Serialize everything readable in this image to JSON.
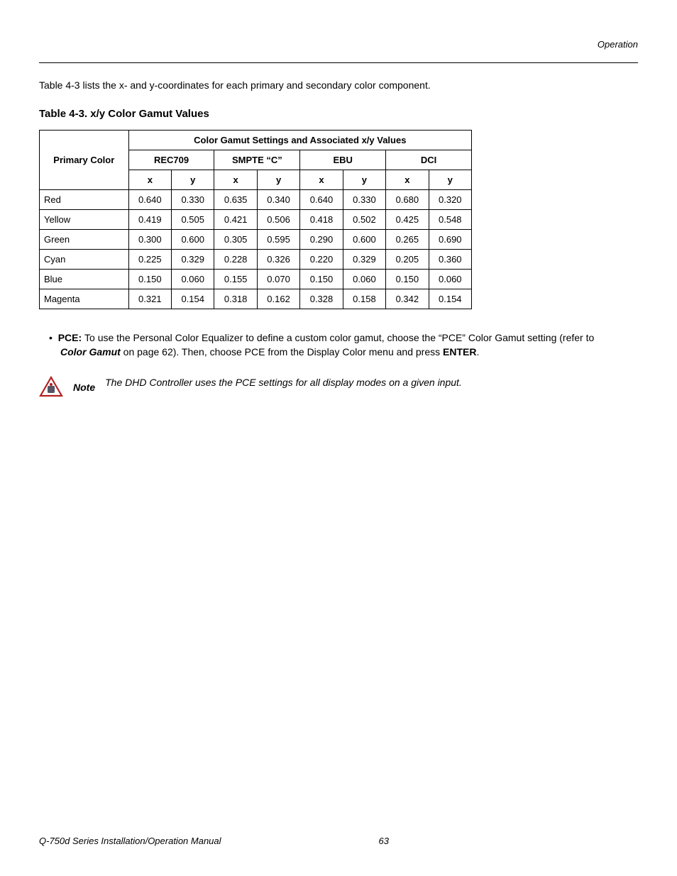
{
  "header": {
    "section": "Operation"
  },
  "intro": "Table 4-3 lists the x- and y-coordinates for each primary and secondary color component.",
  "table": {
    "title": "Table 4-3. x/y Color Gamut Values",
    "primary_header": "Primary Color",
    "group_header": "Color Gamut Settings and Associated x/y Values",
    "standards": [
      "REC709",
      "SMPTE “C”",
      "EBU",
      "DCI"
    ],
    "subheaders": [
      "x",
      "y"
    ],
    "rows": [
      {
        "label": "Red",
        "vals": [
          "0.640",
          "0.330",
          "0.635",
          "0.340",
          "0.640",
          "0.330",
          "0.680",
          "0.320"
        ]
      },
      {
        "label": "Yellow",
        "vals": [
          "0.419",
          "0.505",
          "0.421",
          "0.506",
          "0.418",
          "0.502",
          "0.425",
          "0.548"
        ]
      },
      {
        "label": "Green",
        "vals": [
          "0.300",
          "0.600",
          "0.305",
          "0.595",
          "0.290",
          "0.600",
          "0.265",
          "0.690"
        ]
      },
      {
        "label": "Cyan",
        "vals": [
          "0.225",
          "0.329",
          "0.228",
          "0.326",
          "0.220",
          "0.329",
          "0.205",
          "0.360"
        ]
      },
      {
        "label": "Blue",
        "vals": [
          "0.150",
          "0.060",
          "0.155",
          "0.070",
          "0.150",
          "0.060",
          "0.150",
          "0.060"
        ]
      },
      {
        "label": "Magenta",
        "vals": [
          "0.321",
          "0.154",
          "0.318",
          "0.162",
          "0.328",
          "0.158",
          "0.342",
          "0.154"
        ]
      }
    ]
  },
  "pce": {
    "bullet": "•  ",
    "label": "PCE: ",
    "text1": "To use the Personal Color Equalizer to define a custom color gamut, choose the “PCE” Color Gamut setting (refer to ",
    "bolditalic": "Color Gamut",
    "text2": " on page 62). Then, choose PCE from the Display Color menu and press ",
    "enter": "ENTER",
    "text3": "."
  },
  "note": {
    "label": "Note",
    "text": "The DHD Controller uses the PCE settings for all display modes on a given input."
  },
  "footer": {
    "title": "Q-750d Series Installation/Operation Manual",
    "page": "63"
  },
  "style": {
    "icon_stroke": "#b22222",
    "icon_fill": "#ffffff",
    "icon_inner": "#556",
    "text_color": "#000000",
    "page_bg": "#ffffff"
  }
}
